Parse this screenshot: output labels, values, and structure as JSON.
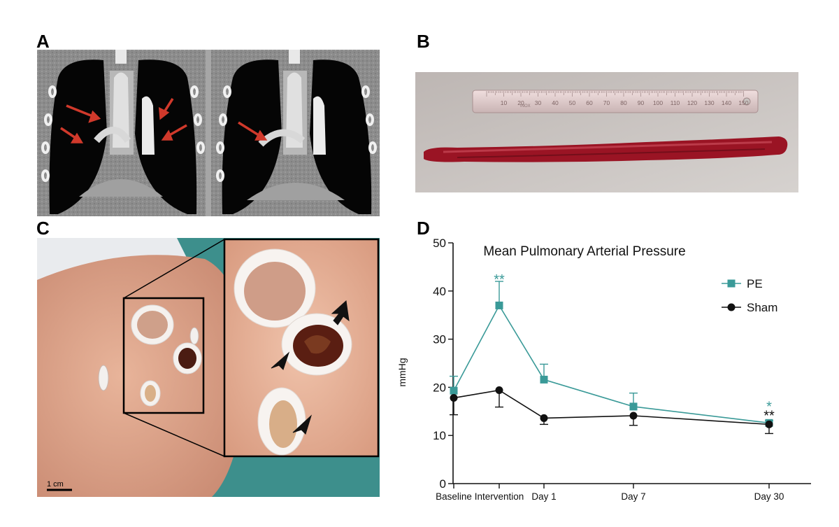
{
  "figure": {
    "panels": {
      "a": {
        "letter": "A"
      },
      "b": {
        "letter": "B"
      },
      "c": {
        "letter": "C",
        "scale_bar_label": "1 cm"
      },
      "d": {
        "letter": "D"
      }
    },
    "ruler_ticks": [
      "10",
      "20",
      "30",
      "40",
      "50",
      "60",
      "70",
      "80",
      "90",
      "100",
      "110",
      "120",
      "130",
      "140",
      "150"
    ],
    "ruler_brand": "INOX"
  },
  "colors": {
    "pe": "#3a9a98",
    "sham": "#111111",
    "clot": "#9a1424",
    "arrow_red": "#d0392b"
  },
  "chart_data": {
    "type": "line",
    "title": "Mean Pulmonary Arterial Pressure",
    "xlabel": "",
    "ylabel": "mmHg",
    "categories": [
      "Baseline",
      "Intervention",
      "Day 1",
      "Day 7",
      "Day 30"
    ],
    "ylim": [
      0,
      50
    ],
    "yticks": [
      "0",
      "10",
      "20",
      "30",
      "40",
      "50"
    ],
    "legend_position": "top-right",
    "series": [
      {
        "name": "PE",
        "marker": "square",
        "values": [
          19.3,
          37.0,
          21.6,
          16.0,
          12.6
        ],
        "error_up": [
          3.0,
          5.0,
          3.2,
          2.8,
          0.5
        ],
        "significance": {
          "1": "**",
          "4": "*"
        }
      },
      {
        "name": "Sham",
        "marker": "circle",
        "values": [
          17.8,
          19.4,
          13.6,
          14.1,
          12.3
        ],
        "error_down": [
          3.5,
          3.5,
          1.3,
          2.0,
          1.9
        ],
        "significance": {
          "4": "**"
        }
      }
    ]
  }
}
